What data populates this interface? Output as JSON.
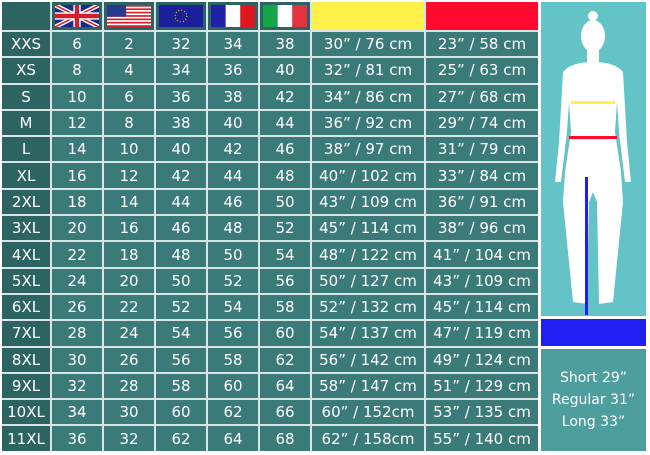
{
  "header": {
    "flags": [
      "uk-flag",
      "us-flag",
      "eu-flag",
      "france-flag",
      "italy-flag"
    ],
    "hip_color": "#fff04a",
    "waist_color": "#ff0a2e",
    "inseam_color": "#1f1ff2"
  },
  "rows": [
    [
      "XXS",
      "6",
      "2",
      "32",
      "34",
      "38",
      "30” / 76 cm",
      "23” / 58 cm"
    ],
    [
      "XS",
      "8",
      "4",
      "34",
      "36",
      "40",
      "32” / 81 cm",
      "25” / 63 cm"
    ],
    [
      "S",
      "10",
      "6",
      "36",
      "38",
      "42",
      "34” / 86 cm",
      "27” / 68 cm"
    ],
    [
      "M",
      "12",
      "8",
      "38",
      "40",
      "44",
      "36” / 92 cm",
      "29” / 74 cm"
    ],
    [
      "L",
      "14",
      "10",
      "40",
      "42",
      "46",
      "38” / 97 cm",
      "31” / 79 cm"
    ],
    [
      "XL",
      "16",
      "12",
      "42",
      "44",
      "48",
      "40” / 102 cm",
      "33” / 84 cm"
    ],
    [
      "2XL",
      "18",
      "14",
      "44",
      "46",
      "50",
      "43” / 109 cm",
      "36” / 91 cm"
    ],
    [
      "3XL",
      "20",
      "16",
      "46",
      "48",
      "52",
      "45” / 114 cm",
      "38” / 96 cm"
    ],
    [
      "4XL",
      "22",
      "18",
      "48",
      "50",
      "54",
      "48” / 122 cm",
      "41” / 104 cm"
    ],
    [
      "5XL",
      "24",
      "20",
      "50",
      "52",
      "56",
      "50” / 127 cm",
      "43” / 109 cm"
    ],
    [
      "6XL",
      "26",
      "22",
      "52",
      "54",
      "58",
      "52” / 132 cm",
      "45” / 114 cm"
    ],
    [
      "7XL",
      "28",
      "24",
      "54",
      "56",
      "60",
      "54” / 137 cm",
      "47” / 119 cm"
    ],
    [
      "8XL",
      "30",
      "26",
      "56",
      "58",
      "62",
      "56” / 142 cm",
      "49” / 124 cm"
    ],
    [
      "9XL",
      "32",
      "28",
      "58",
      "60",
      "64",
      "58” / 147 cm",
      "51” / 129 cm"
    ],
    [
      "10XL",
      "34",
      "30",
      "60",
      "62",
      "66",
      "60” / 152cm",
      "53” / 135 cm"
    ],
    [
      "11XL",
      "36",
      "32",
      "62",
      "64",
      "68",
      "62” / 158cm",
      "55” / 140 cm"
    ]
  ],
  "lengths": [
    "Short 29”",
    "Regular 31”",
    "Long 33”"
  ]
}
